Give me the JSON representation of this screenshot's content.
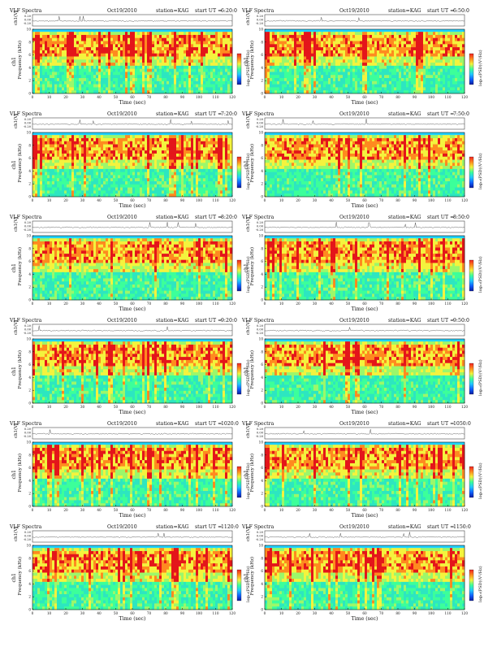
{
  "page": {
    "title": "VLF Spectra",
    "date": "Oct19/2010",
    "station": "station=KAG"
  },
  "labels": {
    "x_axis": "Time (sec)",
    "y_axis": "Frequency (kHz)",
    "ch_axis": "ch1(V)",
    "ch_side": "ch1",
    "colorbar": "log₁₀(PSD)(V²/Hz)",
    "start_prefix": "start UT ="
  },
  "colors": {
    "spectrogram": [
      "#1fd2ff",
      "#2de6c0",
      "#3cff9a",
      "#9cf76a",
      "#f4f33d",
      "#ff8a1f",
      "#e4151a"
    ],
    "colorbar": [
      "#f02020",
      "#ff8a1f",
      "#f4f33d",
      "#3cff9a",
      "#22c8ff",
      "#1060ff",
      "#0a1aa0"
    ]
  },
  "chart_data": [
    {
      "type": "heatmap",
      "start_ut": "6:20:0",
      "xlim": [
        0,
        120
      ],
      "ylim": [
        0,
        10
      ],
      "xticks": [
        0,
        10,
        20,
        30,
        40,
        50,
        60,
        70,
        80,
        90,
        100,
        110,
        120
      ],
      "yticks": [
        0,
        2,
        4,
        6,
        8,
        10
      ],
      "ch1_ticks": [
        "0.20",
        "0.00",
        "-0.20"
      ]
    },
    {
      "type": "heatmap",
      "start_ut": "6:50:0",
      "xlim": [
        0,
        120
      ],
      "ylim": [
        0,
        10
      ],
      "xticks": [
        0,
        10,
        20,
        30,
        40,
        50,
        60,
        70,
        80,
        90,
        100,
        110,
        120
      ],
      "yticks": [
        0,
        2,
        4,
        6,
        8,
        10
      ],
      "ch1_ticks": [
        "0.20",
        "0.00",
        "-0.20"
      ]
    },
    {
      "type": "heatmap",
      "start_ut": "7:20:0",
      "xlim": [
        0,
        120
      ],
      "ylim": [
        0,
        10
      ],
      "xticks": [
        0,
        10,
        20,
        30,
        40,
        50,
        60,
        70,
        80,
        90,
        100,
        110,
        120
      ],
      "yticks": [
        0,
        2,
        4,
        6,
        8,
        10
      ],
      "ch1_ticks": [
        "0.20",
        "0.00",
        "-0.20"
      ]
    },
    {
      "type": "heatmap",
      "start_ut": "7:50:0",
      "xlim": [
        0,
        120
      ],
      "ylim": [
        0,
        10
      ],
      "xticks": [
        0,
        10,
        20,
        30,
        40,
        50,
        60,
        70,
        80,
        90,
        100,
        110,
        120
      ],
      "yticks": [
        0,
        2,
        4,
        6,
        8,
        10
      ],
      "ch1_ticks": [
        "0.20",
        "0.00",
        "-0.20"
      ]
    },
    {
      "type": "heatmap",
      "start_ut": "8:20:0",
      "xlim": [
        0,
        120
      ],
      "ylim": [
        0,
        10
      ],
      "xticks": [
        0,
        10,
        20,
        30,
        40,
        50,
        60,
        70,
        80,
        90,
        100,
        110,
        120
      ],
      "yticks": [
        0,
        2,
        4,
        6,
        8,
        10
      ],
      "ch1_ticks": [
        "0.20",
        "0.00",
        "-0.20"
      ]
    },
    {
      "type": "heatmap",
      "start_ut": "8:50:0",
      "xlim": [
        0,
        120
      ],
      "ylim": [
        0,
        10
      ],
      "xticks": [
        0,
        10,
        20,
        30,
        40,
        50,
        60,
        70,
        80,
        90,
        100,
        110,
        120
      ],
      "yticks": [
        0,
        2,
        4,
        6,
        8,
        10
      ],
      "ch1_ticks": [
        "0.20",
        "0.00",
        "-0.20"
      ]
    },
    {
      "type": "heatmap",
      "start_ut": "9:20:0",
      "xlim": [
        0,
        120
      ],
      "ylim": [
        0,
        10
      ],
      "xticks": [
        0,
        10,
        20,
        30,
        40,
        50,
        60,
        70,
        80,
        90,
        100,
        110,
        120
      ],
      "yticks": [
        0,
        2,
        4,
        6,
        8,
        10
      ],
      "ch1_ticks": [
        "0.20",
        "0.00",
        "-0.20"
      ]
    },
    {
      "type": "heatmap",
      "start_ut": "9:50:0",
      "xlim": [
        0,
        120
      ],
      "ylim": [
        0,
        10
      ],
      "xticks": [
        0,
        10,
        20,
        30,
        40,
        50,
        60,
        70,
        80,
        90,
        100,
        110,
        120
      ],
      "yticks": [
        0,
        2,
        4,
        6,
        8,
        10
      ],
      "ch1_ticks": [
        "0.20",
        "0.00",
        "-0.20"
      ]
    },
    {
      "type": "heatmap",
      "start_ut": "1020:0",
      "xlim": [
        0,
        120
      ],
      "ylim": [
        0,
        10
      ],
      "xticks": [
        0,
        10,
        20,
        30,
        40,
        50,
        60,
        70,
        80,
        90,
        100,
        110,
        120
      ],
      "yticks": [
        0,
        2,
        4,
        6,
        8,
        10
      ],
      "ch1_ticks": [
        "0.20",
        "0.00",
        "-0.20"
      ]
    },
    {
      "type": "heatmap",
      "start_ut": "1050:0",
      "xlim": [
        0,
        120
      ],
      "ylim": [
        0,
        10
      ],
      "xticks": [
        0,
        10,
        20,
        30,
        40,
        50,
        60,
        70,
        80,
        90,
        100,
        110,
        120
      ],
      "yticks": [
        0,
        2,
        4,
        6,
        8,
        10
      ],
      "ch1_ticks": [
        "0.20",
        "0.00",
        "-0.20"
      ]
    },
    {
      "type": "heatmap",
      "start_ut": "1120:0",
      "xlim": [
        0,
        120
      ],
      "ylim": [
        0,
        10
      ],
      "xticks": [
        0,
        10,
        20,
        30,
        40,
        50,
        60,
        70,
        80,
        90,
        100,
        110,
        120
      ],
      "yticks": [
        0,
        2,
        4,
        6,
        8,
        10
      ],
      "ch1_ticks": [
        "0.20",
        "0.00",
        "-0.20"
      ]
    },
    {
      "type": "heatmap",
      "start_ut": "1150:0",
      "xlim": [
        0,
        120
      ],
      "ylim": [
        0,
        10
      ],
      "xticks": [
        0,
        10,
        20,
        30,
        40,
        50,
        60,
        70,
        80,
        90,
        100,
        110,
        120
      ],
      "yticks": [
        0,
        2,
        4,
        6,
        8,
        10
      ],
      "ch1_ticks": [
        "0.20",
        "0.00",
        "-0.20"
      ]
    }
  ]
}
